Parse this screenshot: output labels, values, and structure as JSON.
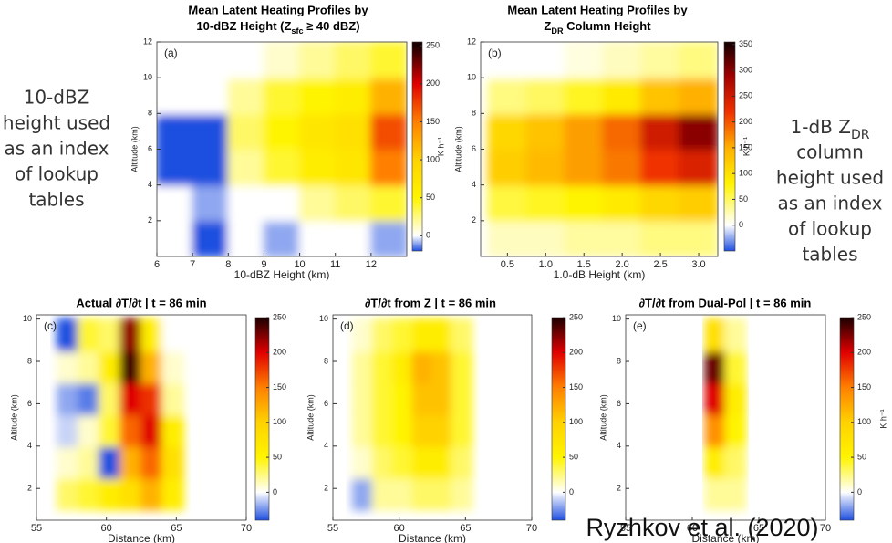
{
  "side_notes": {
    "left": [
      "10-dBZ",
      "height used",
      "as an index",
      "of lookup",
      "tables"
    ],
    "right": [
      [
        "1-dB Z",
        "DR"
      ],
      "column",
      "height used",
      "as an index",
      "of lookup",
      "tables"
    ]
  },
  "credit": "Ryzhkov et al. (2020)",
  "chart_data": [
    {
      "type": "heatmap",
      "panel_label": "(a)",
      "title": [
        "Mean Latent Heating Profiles by",
        [
          "10-dBZ Height (Z",
          "sfc",
          " ≥ 40 dBZ)"
        ]
      ],
      "x_label": "10-dBZ Height (km)",
      "y_label": "Altitude (km)",
      "colorbar_label": "K h⁻¹",
      "xlim": [
        6,
        13
      ],
      "ylim": [
        0,
        12
      ],
      "xticks": [
        6,
        7,
        8,
        9,
        10,
        11,
        12
      ],
      "yticks": [
        2,
        4,
        6,
        8,
        10,
        12
      ],
      "clim": [
        -20,
        255
      ],
      "cticks": [
        0,
        50,
        100,
        150,
        200,
        250
      ],
      "colormap": [
        [
          -20,
          "#1f4fe0"
        ],
        [
          0,
          "#ffffff"
        ],
        [
          50,
          "#fff400"
        ],
        [
          100,
          "#ffd200"
        ],
        [
          150,
          "#ff8000"
        ],
        [
          200,
          "#e00000"
        ],
        [
          250,
          "#1a0000"
        ]
      ],
      "x": [
        6.5,
        7.5,
        8.5,
        9.5,
        10.5,
        11.5,
        12.5
      ],
      "y": [
        1,
        3,
        5,
        7,
        9,
        11
      ],
      "z": [
        [
          0,
          -20,
          0,
          -10,
          0,
          0,
          -10
        ],
        [
          0,
          -10,
          0,
          0,
          20,
          30,
          40
        ],
        [
          -80,
          -30,
          20,
          40,
          60,
          70,
          150
        ],
        [
          -60,
          -40,
          30,
          50,
          70,
          80,
          170
        ],
        [
          0,
          0,
          20,
          40,
          50,
          60,
          120
        ],
        [
          0,
          0,
          0,
          10,
          20,
          30,
          40
        ]
      ]
    },
    {
      "type": "heatmap",
      "panel_label": "(b)",
      "title": [
        "Mean Latent Heating Profiles by",
        [
          "Z",
          "DR",
          " Column Height"
        ]
      ],
      "x_label": "1.0-dB Height (km)",
      "y_label": "Altitude (km)",
      "colorbar_label": "K h⁻¹",
      "xlim": [
        0.15,
        3.25
      ],
      "ylim": [
        0,
        12
      ],
      "xticks": [
        0.5,
        {
          "value": 1,
          "label": "1.0"
        },
        1.5,
        {
          "value": 2,
          "label": "2.0"
        },
        2.5,
        {
          "value": 3,
          "label": "3.0"
        }
      ],
      "yticks": [
        2,
        4,
        6,
        8,
        10,
        12
      ],
      "clim": [
        -50,
        355
      ],
      "cticks": [
        0,
        50,
        100,
        150,
        200,
        250,
        300,
        350
      ],
      "colormap": [
        [
          -50,
          "#1f4fe0"
        ],
        [
          0,
          "#ffffff"
        ],
        [
          80,
          "#fff400"
        ],
        [
          150,
          "#ffb000"
        ],
        [
          220,
          "#f03000"
        ],
        [
          290,
          "#a00000"
        ],
        [
          350,
          "#1a0000"
        ]
      ],
      "x": [
        0.5,
        1,
        1.5,
        2,
        2.5,
        3
      ],
      "y": [
        1,
        3,
        5,
        7,
        9,
        11
      ],
      "z": [
        [
          20,
          20,
          30,
          30,
          40,
          40
        ],
        [
          60,
          70,
          80,
          90,
          110,
          120
        ],
        [
          120,
          140,
          160,
          180,
          220,
          240
        ],
        [
          110,
          130,
          160,
          190,
          250,
          300
        ],
        [
          40,
          50,
          70,
          90,
          130,
          150
        ],
        [
          0,
          0,
          10,
          20,
          30,
          40
        ]
      ]
    },
    {
      "type": "heatmap",
      "panel_label": "(c)",
      "title": "Actual ∂T/∂t | t = 86 min",
      "x_label": "Distance (km)",
      "y_label": "Altitude (km)",
      "xlim": [
        55,
        70
      ],
      "ylim": [
        0.5,
        10.2
      ],
      "xticks": [
        55,
        60,
        65,
        70
      ],
      "yticks": [
        2,
        4,
        6,
        8,
        10
      ],
      "clim": [
        -40,
        250
      ],
      "cticks": [
        0,
        50,
        100,
        150,
        200,
        250
      ],
      "colormap": [
        [
          -40,
          "#1f4fe0"
        ],
        [
          0,
          "#ffffff"
        ],
        [
          50,
          "#fff400"
        ],
        [
          100,
          "#ffd200"
        ],
        [
          150,
          "#ff8000"
        ],
        [
          200,
          "#e00000"
        ],
        [
          250,
          "#1a0000"
        ]
      ],
      "x": [
        55.75,
        57.25,
        58.75,
        60.25,
        61.75,
        63.25,
        64.75,
        66.25,
        67.75,
        69.25
      ],
      "y": [
        1.75,
        3.25,
        4.75,
        6.25,
        7.75,
        9.25
      ],
      "z": [
        [
          null,
          30,
          40,
          60,
          80,
          120,
          60,
          null,
          null,
          null
        ],
        [
          null,
          10,
          20,
          -60,
          120,
          160,
          80,
          null,
          null,
          null
        ],
        [
          null,
          -10,
          10,
          40,
          160,
          200,
          60,
          null,
          null,
          null
        ],
        [
          null,
          -20,
          -30,
          30,
          200,
          180,
          20,
          null,
          null,
          null
        ],
        [
          null,
          10,
          20,
          60,
          240,
          120,
          10,
          null,
          null,
          null
        ],
        [
          null,
          -50,
          40,
          30,
          220,
          60,
          0,
          null,
          null,
          null
        ]
      ]
    },
    {
      "type": "heatmap",
      "panel_label": "(d)",
      "title": "∂T/∂t from Z | t = 86 min",
      "x_label": "Distance (km)",
      "y_label": "Altitude (km)",
      "xlim": [
        55,
        70
      ],
      "ylim": [
        0.5,
        10.2
      ],
      "xticks": [
        55,
        60,
        65,
        70
      ],
      "yticks": [
        2,
        4,
        6,
        8,
        10
      ],
      "clim": [
        -40,
        250
      ],
      "cticks": [
        0,
        50,
        100,
        150,
        200,
        250
      ],
      "colormap": [
        [
          -40,
          "#1f4fe0"
        ],
        [
          0,
          "#ffffff"
        ],
        [
          50,
          "#fff400"
        ],
        [
          100,
          "#ffd200"
        ],
        [
          150,
          "#ff8000"
        ],
        [
          200,
          "#e00000"
        ],
        [
          250,
          "#1a0000"
        ]
      ],
      "x": [
        55.75,
        57.25,
        58.75,
        60.25,
        61.75,
        63.25,
        64.75,
        66.25,
        67.75,
        69.25
      ],
      "y": [
        1.75,
        3.25,
        4.75,
        6.25,
        7.75,
        9.25
      ],
      "z": [
        [
          null,
          -20,
          20,
          20,
          30,
          30,
          20,
          null,
          null,
          null
        ],
        [
          null,
          10,
          30,
          40,
          60,
          60,
          30,
          null,
          null,
          null
        ],
        [
          null,
          20,
          40,
          50,
          100,
          100,
          40,
          null,
          null,
          null
        ],
        [
          null,
          20,
          40,
          50,
          110,
          110,
          40,
          null,
          null,
          null
        ],
        [
          null,
          20,
          40,
          60,
          120,
          110,
          40,
          null,
          null,
          null
        ],
        [
          null,
          10,
          30,
          40,
          60,
          60,
          30,
          null,
          null,
          null
        ]
      ]
    },
    {
      "type": "heatmap",
      "panel_label": "(e)",
      "title": "∂T/∂t from Dual-Pol | t = 86 min",
      "x_label": "Distance (km)",
      "y_label": "Altitude (km)",
      "colorbar_label": "K h⁻¹",
      "xlim": [
        55,
        70
      ],
      "ylim": [
        0.5,
        10.2
      ],
      "xticks": [
        55,
        60,
        65,
        70
      ],
      "yticks": [
        2,
        4,
        6,
        8,
        10
      ],
      "clim": [
        -40,
        250
      ],
      "cticks": [
        0,
        50,
        100,
        150,
        200,
        250
      ],
      "colormap": [
        [
          -40,
          "#1f4fe0"
        ],
        [
          0,
          "#ffffff"
        ],
        [
          50,
          "#fff400"
        ],
        [
          100,
          "#ffd200"
        ],
        [
          150,
          "#ff8000"
        ],
        [
          200,
          "#e00000"
        ],
        [
          250,
          "#1a0000"
        ]
      ],
      "x": [
        55.75,
        57.25,
        58.75,
        60.25,
        61.75,
        63.25,
        64.75,
        66.25,
        67.75,
        69.25
      ],
      "y": [
        1.75,
        3.25,
        4.75,
        6.25,
        7.75,
        9.25
      ],
      "z": [
        [
          null,
          null,
          null,
          null,
          20,
          20,
          null,
          null,
          null,
          null
        ],
        [
          null,
          null,
          null,
          null,
          60,
          30,
          null,
          null,
          null,
          null
        ],
        [
          null,
          null,
          null,
          null,
          140,
          50,
          null,
          null,
          null,
          null
        ],
        [
          null,
          null,
          null,
          null,
          200,
          60,
          null,
          null,
          null,
          null
        ],
        [
          null,
          null,
          null,
          null,
          230,
          40,
          null,
          null,
          null,
          null
        ],
        [
          null,
          null,
          null,
          null,
          80,
          20,
          null,
          null,
          null,
          null
        ]
      ]
    }
  ]
}
